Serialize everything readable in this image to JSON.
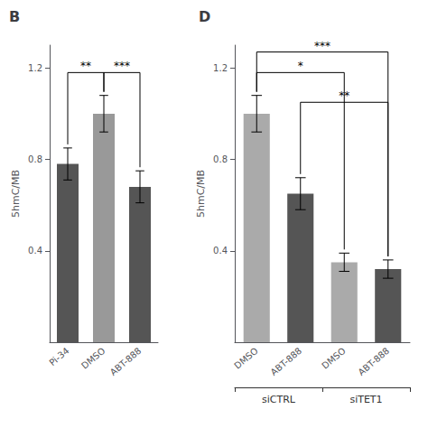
{
  "chart_data": [
    {
      "type": "bar",
      "title": "B",
      "categories": [
        "Pi-34",
        "DMSO",
        "ABT-888"
      ],
      "values": [
        0.78,
        1.0,
        0.68
      ],
      "errors": [
        0.07,
        0.08,
        0.07
      ],
      "colors": [
        "#555555",
        "#999999",
        "#555555"
      ],
      "ylabel": "5hmC/MB",
      "ylim": [
        0,
        1.3
      ],
      "yticks": [
        0.4,
        0.8,
        1.2
      ],
      "grid": false,
      "significance": [
        {
          "x1": 0,
          "x2": 1,
          "y": 1.18,
          "label": "**"
        },
        {
          "x1": 1,
          "x2": 2,
          "y": 1.18,
          "label": "***"
        }
      ]
    },
    {
      "type": "bar",
      "title": "D",
      "categories": [
        "DMSO",
        "ABT-888",
        "DMSO",
        "ABT-888"
      ],
      "values": [
        1.0,
        0.65,
        0.35,
        0.32
      ],
      "errors": [
        0.08,
        0.07,
        0.04,
        0.04
      ],
      "colors": [
        "#aaaaaa",
        "#555555",
        "#aaaaaa",
        "#555555"
      ],
      "ylabel": "5hmC/MB",
      "ylim": [
        0,
        1.3
      ],
      "yticks": [
        0.4,
        0.8,
        1.2
      ],
      "grid": false,
      "group_labels": [
        "siCTRL",
        "siTET1"
      ],
      "significance": [
        {
          "x1": 0,
          "x2": 2,
          "y": 1.18,
          "label": "*"
        },
        {
          "x1": 0,
          "x2": 3,
          "y": 1.27,
          "label": "***"
        },
        {
          "x1": 1,
          "x2": 3,
          "y": 1.05,
          "label": "**"
        }
      ]
    }
  ]
}
